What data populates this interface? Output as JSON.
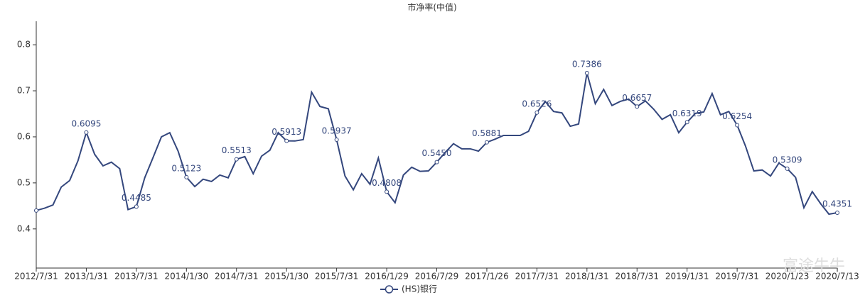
{
  "chart_data": {
    "type": "line",
    "title": "市净率(中值)",
    "categories": [
      "2012/7/31",
      null,
      null,
      null,
      null,
      null,
      "2013/1/31",
      null,
      null,
      null,
      null,
      null,
      "2013/7/31",
      null,
      null,
      null,
      null,
      null,
      "2014/1/30",
      null,
      null,
      null,
      null,
      null,
      "2014/7/31",
      null,
      null,
      null,
      null,
      null,
      "2015/1/30",
      null,
      null,
      null,
      null,
      null,
      "2015/7/31",
      null,
      null,
      null,
      null,
      null,
      "2016/1/29",
      null,
      null,
      null,
      null,
      null,
      "2016/7/29",
      null,
      null,
      null,
      null,
      null,
      "2017/1/26",
      null,
      null,
      null,
      null,
      null,
      "2017/7/31",
      null,
      null,
      null,
      null,
      null,
      "2018/1/31",
      null,
      null,
      null,
      null,
      null,
      "2018/7/31",
      null,
      null,
      null,
      null,
      null,
      "2019/1/31",
      null,
      null,
      null,
      null,
      null,
      "2019/7/31",
      null,
      null,
      null,
      null,
      null,
      "2020/1/23",
      null,
      null,
      null,
      null,
      null,
      "2020/7/13"
    ],
    "series": [
      {
        "name": "(HS)银行",
        "color": "#34477d",
        "values": [
          0.44,
          0.445,
          0.452,
          0.491,
          0.505,
          0.548,
          0.6095,
          0.562,
          0.537,
          0.545,
          0.531,
          0.442,
          0.4485,
          0.511,
          0.555,
          0.6,
          0.609,
          0.569,
          0.5123,
          0.492,
          0.508,
          0.503,
          0.517,
          0.511,
          0.5513,
          0.557,
          0.52,
          0.558,
          0.571,
          0.609,
          0.5913,
          0.591,
          0.594,
          0.697,
          0.666,
          0.661,
          0.5937,
          0.515,
          0.485,
          0.52,
          0.497,
          0.554,
          0.4808,
          0.457,
          0.517,
          0.534,
          0.525,
          0.526,
          0.545,
          0.566,
          0.585,
          0.574,
          0.574,
          0.569,
          0.5881,
          0.595,
          0.603,
          0.603,
          0.603,
          0.612,
          0.6526,
          0.677,
          0.655,
          0.652,
          0.623,
          0.628,
          0.7386,
          0.672,
          0.703,
          0.668,
          0.677,
          0.682,
          0.6657,
          0.678,
          0.66,
          0.638,
          0.648,
          0.609,
          0.6319,
          0.651,
          0.654,
          0.694,
          0.648,
          0.655,
          0.6254,
          0.58,
          0.526,
          0.528,
          0.515,
          0.543,
          0.5309,
          0.512,
          0.446,
          0.481,
          0.455,
          0.432,
          0.4351
        ],
        "value_labels": [
          null,
          null,
          null,
          null,
          null,
          null,
          "0.6095",
          null,
          null,
          null,
          null,
          null,
          "0.4485",
          null,
          null,
          null,
          null,
          null,
          "0.5123",
          null,
          null,
          null,
          null,
          null,
          "0.5513",
          null,
          null,
          null,
          null,
          null,
          "0.5913",
          null,
          null,
          null,
          null,
          null,
          "0.5937",
          null,
          null,
          null,
          null,
          null,
          "0.4808",
          null,
          null,
          null,
          null,
          null,
          "0.5450",
          null,
          null,
          null,
          null,
          null,
          "0.5881",
          null,
          null,
          null,
          null,
          null,
          "0.6526",
          null,
          null,
          null,
          null,
          null,
          "0.7386",
          null,
          null,
          null,
          null,
          null,
          "0.6657",
          null,
          null,
          null,
          null,
          null,
          "0.6319",
          null,
          null,
          null,
          null,
          null,
          "0.6254",
          null,
          null,
          null,
          null,
          null,
          "0.5309",
          null,
          null,
          null,
          null,
          null,
          "0.4351"
        ]
      }
    ],
    "ylim": [
      0.315,
      0.851
    ],
    "yticks": [
      0.4,
      0.5,
      0.6,
      0.7,
      0.8
    ],
    "grid": false,
    "legend": "bottom",
    "watermark": "富途牛牛"
  }
}
